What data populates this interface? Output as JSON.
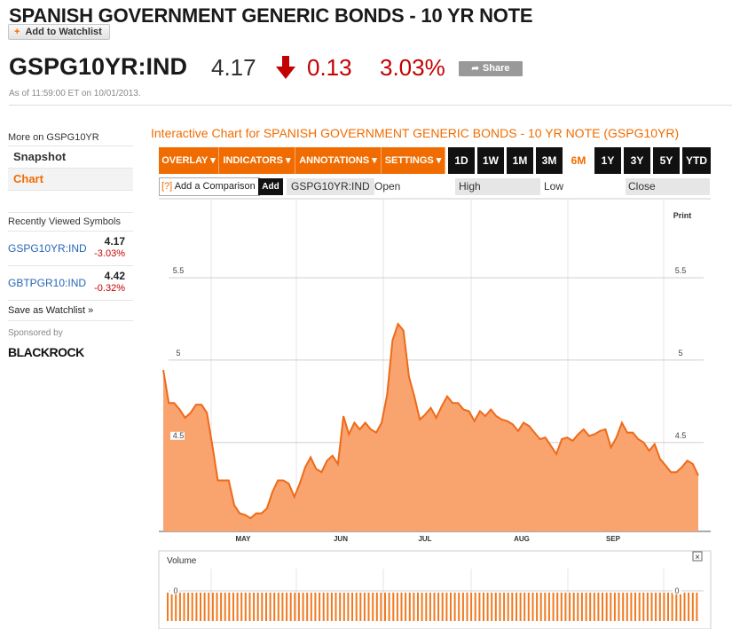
{
  "header": {
    "title": "SPANISH GOVERNMENT GENERIC BONDS - 10 YR NOTE",
    "add_watchlist": "Add to Watchlist",
    "symbol": "GSPG10YR:IND",
    "price": "4.17",
    "change": "0.13",
    "change_pct": "3.03%",
    "share": "Share",
    "timestamp": "As of 11:59:00 ET on 10/01/2013."
  },
  "sidebar": {
    "more_on": "More on GSPG10YR",
    "nav": [
      {
        "label": "Snapshot",
        "active": false
      },
      {
        "label": "Chart",
        "active": true
      }
    ],
    "recent_title": "Recently Viewed Symbols",
    "recent": [
      {
        "symbol": "GSPG10YR:IND",
        "value": "4.17",
        "change": "-3.03%"
      },
      {
        "symbol": "GBTPGR10:IND",
        "value": "4.42",
        "change": "-0.32%"
      }
    ],
    "save_watchlist": "Save as Watchlist »",
    "sponsored": "Sponsored by",
    "sponsor": "BLACKROCK"
  },
  "chart_panel": {
    "title": "Interactive Chart for SPANISH GOVERNMENT GENERIC BONDS - 10 YR NOTE (GSPG10YR)",
    "menus": [
      "OVERLAY ▾",
      "INDICATORS ▾",
      "ANNOTATIONS ▾",
      "SETTINGS ▾"
    ],
    "ranges": [
      "1D",
      "1W",
      "1M",
      "3M",
      "6M",
      "1Y",
      "3Y",
      "5Y",
      "YTD"
    ],
    "active_range": "6M",
    "compare_q": "[?]",
    "compare_label": "Add a Comparison",
    "compare_add": "Add",
    "fields": {
      "symbol": "GSPG10YR:IND",
      "open": "Open",
      "high": "High",
      "low": "Low",
      "close": "Close"
    },
    "print": "Print",
    "volume_label": "Volume",
    "volume_close": "×",
    "volume_zero": "0"
  },
  "colors": {
    "accent": "#f06c00",
    "area_fill": "#f9a36e",
    "line": "#ee6a1a",
    "down": "#c40000",
    "volume_bar": "#f07a20"
  },
  "chart_data": {
    "type": "area",
    "title": "Interactive Chart for SPANISH GOVERNMENT GENERIC BONDS - 10 YR NOTE (GSPG10YR)",
    "xlabel": "",
    "ylabel": "",
    "x_tick_labels": [
      "MAY",
      "JUN",
      "JUL",
      "AUG",
      "SEP"
    ],
    "y_tick_labels": [
      "4.5",
      "5",
      "5.5"
    ],
    "ylim": [
      3.96,
      5.98
    ],
    "grid": true,
    "series": [
      {
        "values": [
          4.94,
          4.74,
          4.74,
          4.7,
          4.65,
          4.68,
          4.73,
          4.73,
          4.68,
          4.48,
          4.27,
          4.27,
          4.27,
          4.12,
          4.07,
          4.06,
          4.04,
          4.07,
          4.07,
          4.1,
          4.2,
          4.27,
          4.27,
          4.25,
          4.17,
          4.25,
          4.35,
          4.41,
          4.34,
          4.32,
          4.39,
          4.42,
          4.37,
          4.66,
          4.55,
          4.62,
          4.58,
          4.62,
          4.58,
          4.56,
          4.62,
          4.79,
          5.12,
          5.22,
          5.18,
          4.9,
          4.78,
          4.64,
          4.67,
          4.71,
          4.65,
          4.72,
          4.78,
          4.74,
          4.74,
          4.7,
          4.69,
          4.63,
          4.69,
          4.66,
          4.7,
          4.66,
          4.64,
          4.63,
          4.61,
          4.57,
          4.62,
          4.6,
          4.56,
          4.52,
          4.53,
          4.48,
          4.43,
          4.52,
          4.53,
          4.51,
          4.55,
          4.58,
          4.54,
          4.55,
          4.57,
          4.58,
          4.47,
          4.53,
          4.62,
          4.56,
          4.56,
          4.52,
          4.5,
          4.45,
          4.49,
          4.4,
          4.36,
          4.32,
          4.32,
          4.35,
          4.39,
          4.37,
          4.3
        ]
      }
    ]
  }
}
